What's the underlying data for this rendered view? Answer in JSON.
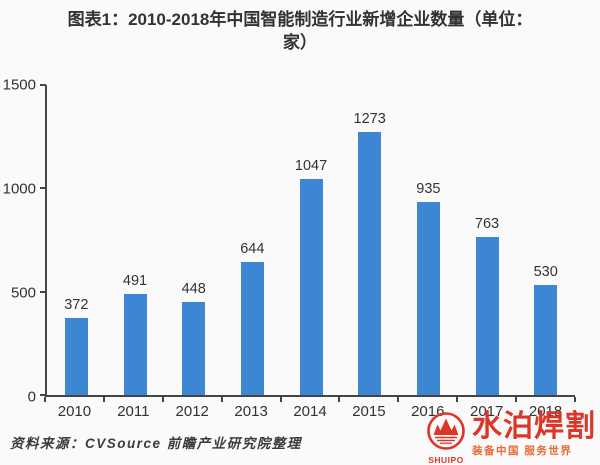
{
  "page": {
    "background": "#fbfafb"
  },
  "title": {
    "line1": "图表1：2010-2018年中国智能制造行业新增企业数量（单位：",
    "line2": "家）"
  },
  "chart_data": {
    "type": "bar",
    "title": "2010-2018年中国智能制造行业新增企业数量（单位：家）",
    "categories": [
      "2010",
      "2011",
      "2012",
      "2013",
      "2014",
      "2015",
      "2016",
      "2017",
      "2018"
    ],
    "values": [
      372,
      491,
      448,
      644,
      1047,
      1273,
      935,
      763,
      530
    ],
    "xlabel": "",
    "ylabel": "",
    "ylim": [
      0,
      1500
    ],
    "yticks": [
      0,
      500,
      1000,
      1500
    ],
    "grid": false,
    "legend": "none",
    "value_labels": true,
    "bar_color": "#3d86d3",
    "axis_color": "#454545"
  },
  "source": {
    "label": "资料来源：CVSource 前瞻产业研究院整理"
  },
  "watermark_logo": {
    "brand_cn": "水泊焊割",
    "brand_en": "SHUIPO",
    "tagline": "装备中国 服务世界",
    "red": "#dd3527",
    "orange": "#e96a33"
  }
}
